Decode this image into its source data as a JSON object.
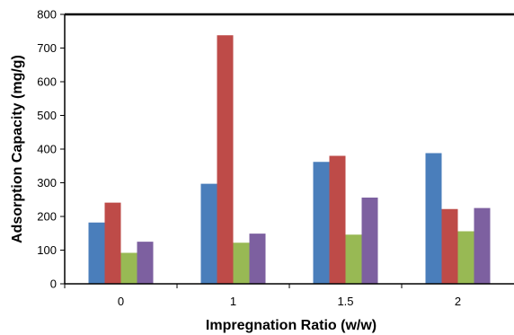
{
  "chart_data": {
    "type": "bar",
    "title": "",
    "xlabel": "Impregnation  Ratio (w/w)",
    "ylabel": "Adsorption  Capacity  (mg/g)",
    "categories": [
      "0",
      "1",
      "1.5",
      "2"
    ],
    "ylim": [
      0,
      800
    ],
    "yticks": [
      "0",
      "100",
      "200",
      "300",
      "400",
      "500",
      "600",
      "700",
      "800"
    ],
    "grid": false,
    "legend": "none",
    "series": [
      {
        "color": "#4a7ebb",
        "values": [
          182,
          297,
          362,
          388
        ]
      },
      {
        "color": "#be4b48",
        "values": [
          241,
          738,
          380,
          222
        ]
      },
      {
        "color": "#98b954",
        "values": [
          92,
          122,
          146,
          156
        ]
      },
      {
        "color": "#7d60a0",
        "values": [
          125,
          149,
          256,
          225
        ]
      }
    ]
  }
}
